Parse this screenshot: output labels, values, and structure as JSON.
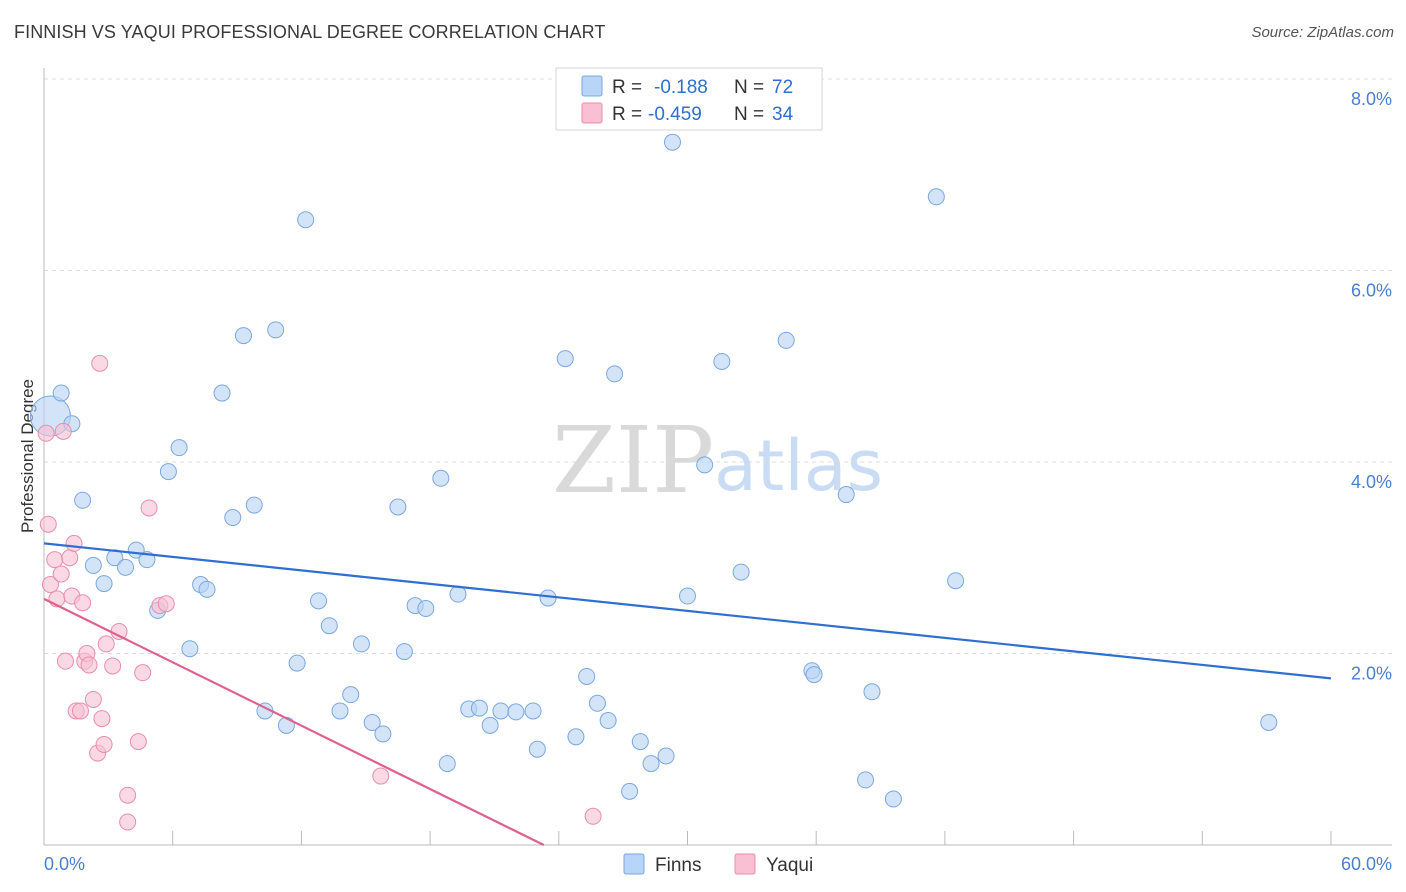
{
  "title": "FINNISH VS YAQUI PROFESSIONAL DEGREE CORRELATION CHART",
  "source": "Source: ZipAtlas.com",
  "colors": {
    "finns_fill": "#b8d4f6",
    "finns_stroke": "#7aa8e0",
    "finns_line": "#2f6fcf",
    "yaqui_fill": "#f8c0d2",
    "yaqui_stroke": "#e88eab",
    "yaqui_line": "#e0608e",
    "grid": "#dcdcdc",
    "axis": "#bbbbbb"
  },
  "watermark": {
    "zip": "ZIP",
    "atlas": "atlas"
  },
  "legend": {
    "rows": [
      {
        "r_label": "R =",
        "r_value": "-0.188",
        "n_label": "N =",
        "n_value": "72"
      },
      {
        "r_label": "R =",
        "r_value": "-0.459",
        "n_label": "N =",
        "n_value": "34"
      }
    ]
  },
  "chart_data": {
    "type": "scatter",
    "title": "FINNISH VS YAQUI PROFESSIONAL DEGREE CORRELATION CHART",
    "xlabel": "",
    "ylabel": "Professional Degree",
    "xlim": [
      0,
      60
    ],
    "ylim": [
      0,
      8.0
    ],
    "x_tick_labels": {
      "min": "0.0%",
      "max": "60.0%"
    },
    "y_ticks": [
      {
        "value": 2.0,
        "label": "2.0%"
      },
      {
        "value": 4.0,
        "label": "4.0%"
      },
      {
        "value": 6.0,
        "label": "6.0%"
      },
      {
        "value": 8.0,
        "label": "8.0%"
      }
    ],
    "series": [
      {
        "name": "Finns",
        "trend": {
          "x": [
            0,
            60
          ],
          "y": [
            3.15,
            1.74
          ]
        },
        "points": [
          [
            0.3,
            4.48,
            1
          ],
          [
            0.8,
            4.72,
            0
          ],
          [
            1.3,
            4.4,
            0
          ],
          [
            1.8,
            3.6,
            0
          ],
          [
            2.3,
            2.92,
            0
          ],
          [
            2.8,
            2.73,
            0
          ],
          [
            3.3,
            3.0,
            0
          ],
          [
            3.8,
            2.9,
            0
          ],
          [
            4.3,
            3.08,
            0
          ],
          [
            4.8,
            2.98,
            0
          ],
          [
            5.3,
            2.45,
            0
          ],
          [
            5.8,
            3.9,
            0
          ],
          [
            6.3,
            4.15,
            0
          ],
          [
            6.8,
            2.05,
            0
          ],
          [
            7.3,
            2.72,
            0
          ],
          [
            7.6,
            2.67,
            0
          ],
          [
            8.3,
            4.72,
            0
          ],
          [
            8.8,
            3.42,
            0
          ],
          [
            9.3,
            5.32,
            0
          ],
          [
            9.8,
            3.55,
            0
          ],
          [
            10.3,
            1.4,
            0
          ],
          [
            10.8,
            5.38,
            0
          ],
          [
            11.3,
            1.25,
            0
          ],
          [
            11.8,
            1.9,
            0
          ],
          [
            12.2,
            6.53,
            0
          ],
          [
            12.8,
            2.55,
            0
          ],
          [
            13.3,
            2.29,
            0
          ],
          [
            13.8,
            1.4,
            0
          ],
          [
            14.3,
            1.57,
            0
          ],
          [
            14.8,
            2.1,
            0
          ],
          [
            15.3,
            1.28,
            0
          ],
          [
            15.8,
            1.16,
            0
          ],
          [
            16.5,
            3.53,
            0
          ],
          [
            16.8,
            2.02,
            0
          ],
          [
            17.3,
            2.5,
            0
          ],
          [
            17.8,
            2.47,
            0
          ],
          [
            18.5,
            3.83,
            0
          ],
          [
            18.8,
            0.85,
            0
          ],
          [
            19.3,
            2.62,
            0
          ],
          [
            19.8,
            1.42,
            0
          ],
          [
            20.3,
            1.43,
            0
          ],
          [
            20.8,
            1.25,
            0
          ],
          [
            21.3,
            1.4,
            0
          ],
          [
            22.0,
            1.39,
            0
          ],
          [
            22.8,
            1.4,
            0
          ],
          [
            23.0,
            1.0,
            0
          ],
          [
            23.5,
            2.58,
            0
          ],
          [
            24.3,
            5.08,
            0
          ],
          [
            24.8,
            1.13,
            0
          ],
          [
            25.3,
            1.76,
            0
          ],
          [
            25.8,
            1.48,
            0
          ],
          [
            26.3,
            1.3,
            0
          ],
          [
            26.6,
            4.92,
            0
          ],
          [
            27.3,
            0.56,
            0
          ],
          [
            27.8,
            1.08,
            0
          ],
          [
            28.3,
            0.85,
            0
          ],
          [
            29.0,
            0.93,
            0
          ],
          [
            29.3,
            7.34,
            0
          ],
          [
            30.0,
            2.6,
            0
          ],
          [
            30.8,
            3.97,
            0
          ],
          [
            31.6,
            5.05,
            0
          ],
          [
            32.5,
            2.85,
            0
          ],
          [
            34.6,
            5.27,
            0
          ],
          [
            35.8,
            1.82,
            0
          ],
          [
            35.9,
            1.78,
            0
          ],
          [
            37.4,
            3.66,
            0
          ],
          [
            38.3,
            0.68,
            0
          ],
          [
            38.6,
            1.6,
            0
          ],
          [
            39.6,
            0.48,
            0
          ],
          [
            41.6,
            6.77,
            0
          ],
          [
            42.5,
            2.76,
            0
          ],
          [
            57.1,
            1.28,
            0
          ]
        ]
      },
      {
        "name": "Yaqui",
        "trend": {
          "x": [
            0,
            23.3
          ],
          "y": [
            2.57,
            0
          ]
        },
        "points": [
          [
            0.1,
            4.3
          ],
          [
            0.2,
            3.35
          ],
          [
            0.3,
            2.72
          ],
          [
            0.5,
            2.98
          ],
          [
            0.6,
            2.57
          ],
          [
            0.8,
            2.83
          ],
          [
            0.9,
            4.32
          ],
          [
            1.0,
            1.92
          ],
          [
            1.2,
            3.0
          ],
          [
            1.3,
            2.6
          ],
          [
            1.4,
            3.15
          ],
          [
            1.5,
            1.4
          ],
          [
            1.7,
            1.4
          ],
          [
            1.8,
            2.53
          ],
          [
            1.9,
            1.92
          ],
          [
            2.0,
            2.0
          ],
          [
            2.1,
            1.88
          ],
          [
            2.3,
            1.52
          ],
          [
            2.5,
            0.96
          ],
          [
            2.6,
            5.03
          ],
          [
            2.7,
            1.32
          ],
          [
            2.8,
            1.05
          ],
          [
            2.9,
            2.1
          ],
          [
            3.2,
            1.87
          ],
          [
            3.5,
            2.23
          ],
          [
            3.9,
            0.52
          ],
          [
            3.9,
            0.24
          ],
          [
            4.4,
            1.08
          ],
          [
            4.6,
            1.8
          ],
          [
            4.9,
            3.52
          ],
          [
            5.4,
            2.5
          ],
          [
            5.7,
            2.52
          ],
          [
            15.7,
            0.72
          ],
          [
            25.6,
            0.3
          ]
        ]
      }
    ]
  },
  "bottom_legend": [
    {
      "label": "Finns"
    },
    {
      "label": "Yaqui"
    }
  ]
}
